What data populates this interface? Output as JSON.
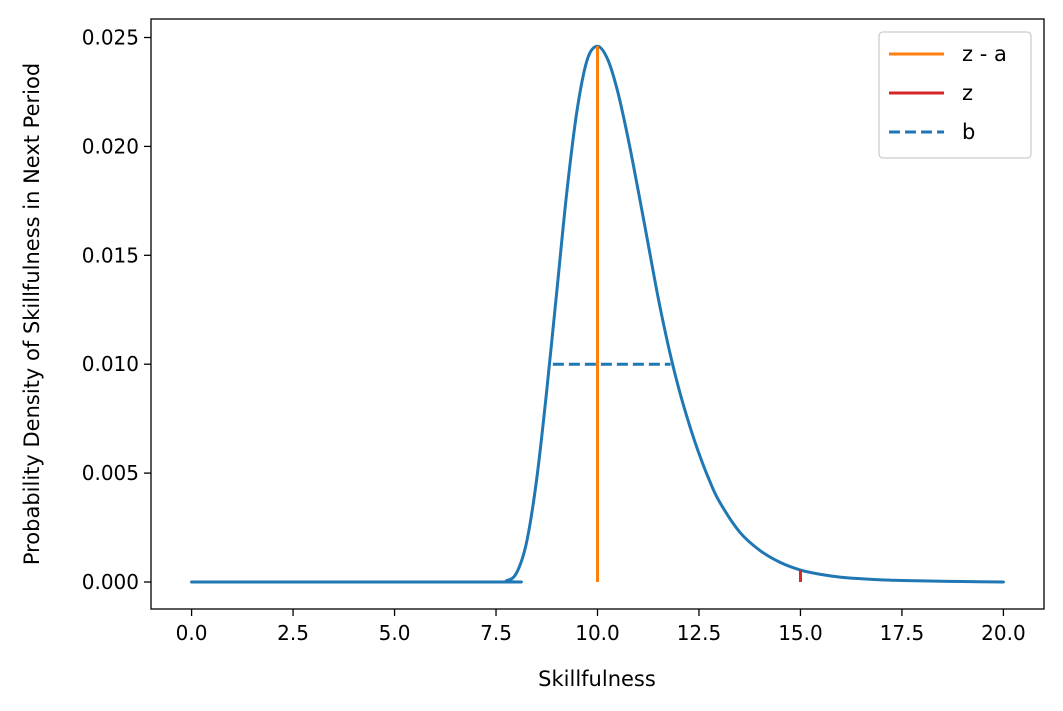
{
  "chart_data": {
    "type": "line",
    "title": "",
    "xlabel": "Skillfulness",
    "ylabel": "Probability Density of Skillfulness in Next Period",
    "xlim": [
      -1.0,
      21.0
    ],
    "ylim": [
      -0.00124,
      0.02585
    ],
    "x_ticks": [
      0,
      2.5,
      5,
      7.5,
      10,
      12.5,
      15,
      17.5,
      20
    ],
    "x_tick_labels": [
      "0.0",
      "2.5",
      "5.0",
      "7.5",
      "10.0",
      "12.5",
      "15.0",
      "17.5",
      "20.0"
    ],
    "y_ticks": [
      0,
      0.005,
      0.01,
      0.015,
      0.02,
      0.025
    ],
    "y_tick_labels": [
      "0.000",
      "0.005",
      "0.010",
      "0.015",
      "0.020",
      "0.025"
    ],
    "grid": false,
    "legend_position": "top-right",
    "curve": {
      "color": "#1f77b4",
      "x": [
        0,
        7.5,
        7.75,
        8.0,
        8.25,
        8.5,
        8.75,
        9.0,
        9.25,
        9.5,
        9.75,
        10.0,
        10.25,
        10.5,
        10.75,
        11.0,
        11.25,
        11.5,
        11.75,
        12.0,
        12.25,
        12.5,
        12.75,
        13.0,
        13.5,
        14.0,
        14.5,
        15.0,
        15.5,
        16.0,
        16.5,
        17.0,
        17.5,
        18.0,
        19.0,
        20.0
      ],
      "y": [
        0.0,
        0.0,
        5e-05,
        0.0004,
        0.0018,
        0.0047,
        0.0088,
        0.0134,
        0.018,
        0.0217,
        0.024,
        0.0246,
        0.024,
        0.0225,
        0.0204,
        0.018,
        0.0155,
        0.013,
        0.0108,
        0.0089,
        0.0073,
        0.0059,
        0.0047,
        0.0037,
        0.0023,
        0.00145,
        0.0009,
        0.00055,
        0.00035,
        0.00022,
        0.00015,
        0.0001,
        7e-05,
        5e-05,
        2e-05,
        0.0
      ]
    },
    "series": [
      {
        "name": "z - a",
        "color": "#ff7f0e",
        "style": "solid",
        "x": [
          10.0,
          10.0
        ],
        "y": [
          0.0,
          0.0246
        ]
      },
      {
        "name": "z",
        "color": "#d62728",
        "style": "solid",
        "x": [
          15.0,
          15.0
        ],
        "y": [
          0.0,
          0.00055
        ]
      },
      {
        "name": "b",
        "color": "#1f77b4",
        "style": "dashed",
        "x": [
          8.9,
          11.8
        ],
        "y": [
          0.01,
          0.01
        ]
      }
    ]
  }
}
